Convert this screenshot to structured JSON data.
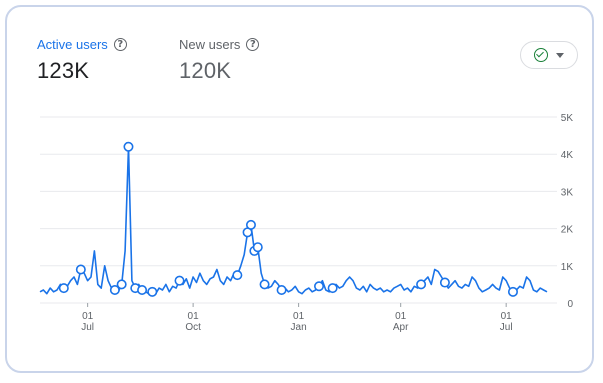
{
  "metrics": {
    "active_users": {
      "label": "Active users",
      "value": "123K"
    },
    "new_users": {
      "label": "New users",
      "value": "120K"
    }
  },
  "controls": {
    "compare_icon": "check-circle-icon",
    "dropdown_icon": "caret-down-icon"
  },
  "colors": {
    "line": "#1a73e8",
    "grid": "#e8eaed",
    "axis_text": "#5f6368",
    "accent_green": "#188038"
  },
  "chart_data": {
    "type": "line",
    "series": [
      {
        "values": [
          300,
          350,
          250,
          400,
          300,
          350,
          500,
          400,
          450,
          600,
          700,
          500,
          900,
          800,
          600,
          700,
          1400,
          500,
          400,
          1000,
          600,
          400,
          350,
          300,
          500,
          1400,
          4200,
          600,
          400,
          500,
          350,
          300,
          250,
          300,
          250,
          400,
          350,
          500,
          300,
          450,
          400,
          600,
          500,
          650,
          400,
          700,
          550,
          800,
          600,
          500,
          650,
          700,
          900,
          600,
          500,
          700,
          600,
          800,
          750,
          1000,
          1300,
          1900,
          2100,
          1400,
          1500,
          800,
          500,
          400,
          450,
          600,
          500,
          350,
          400,
          300,
          350,
          450,
          300,
          250,
          350,
          400,
          300,
          350,
          450,
          600,
          350,
          300,
          400,
          500,
          400,
          450,
          600,
          700,
          600,
          400,
          350,
          450,
          300,
          500,
          400,
          350,
          400,
          300,
          350,
          300,
          400,
          450,
          500,
          350,
          400,
          300,
          450,
          400,
          500,
          600,
          700,
          500,
          900,
          850,
          700,
          550,
          400,
          500,
          600,
          450,
          400,
          500,
          450,
          700,
          600,
          400,
          300,
          350,
          400,
          500,
          400,
          350,
          700,
          600,
          400,
          300,
          350,
          450,
          400,
          700,
          600,
          350,
          300,
          400,
          350,
          300
        ]
      }
    ],
    "ylim": [
      0,
      5000
    ],
    "y_ticks": [
      {
        "value": 5000,
        "label": "5K"
      },
      {
        "value": 4000,
        "label": "4K"
      },
      {
        "value": 3000,
        "label": "3K"
      },
      {
        "value": 2000,
        "label": "2K"
      },
      {
        "value": 1000,
        "label": "1K"
      },
      {
        "value": 0,
        "label": "0"
      }
    ],
    "x_ticks": [
      {
        "index": 14,
        "day": "01",
        "month": "Jul"
      },
      {
        "index": 45,
        "day": "01",
        "month": "Oct"
      },
      {
        "index": 76,
        "day": "01",
        "month": "Jan"
      },
      {
        "index": 106,
        "day": "01",
        "month": "Apr"
      },
      {
        "index": 137,
        "day": "01",
        "month": "Jul"
      }
    ],
    "markers": [
      7,
      12,
      22,
      24,
      26,
      28,
      30,
      33,
      41,
      58,
      61,
      62,
      63,
      64,
      66,
      71,
      82,
      86,
      112,
      119,
      139
    ],
    "grid": true,
    "legend": "none"
  }
}
